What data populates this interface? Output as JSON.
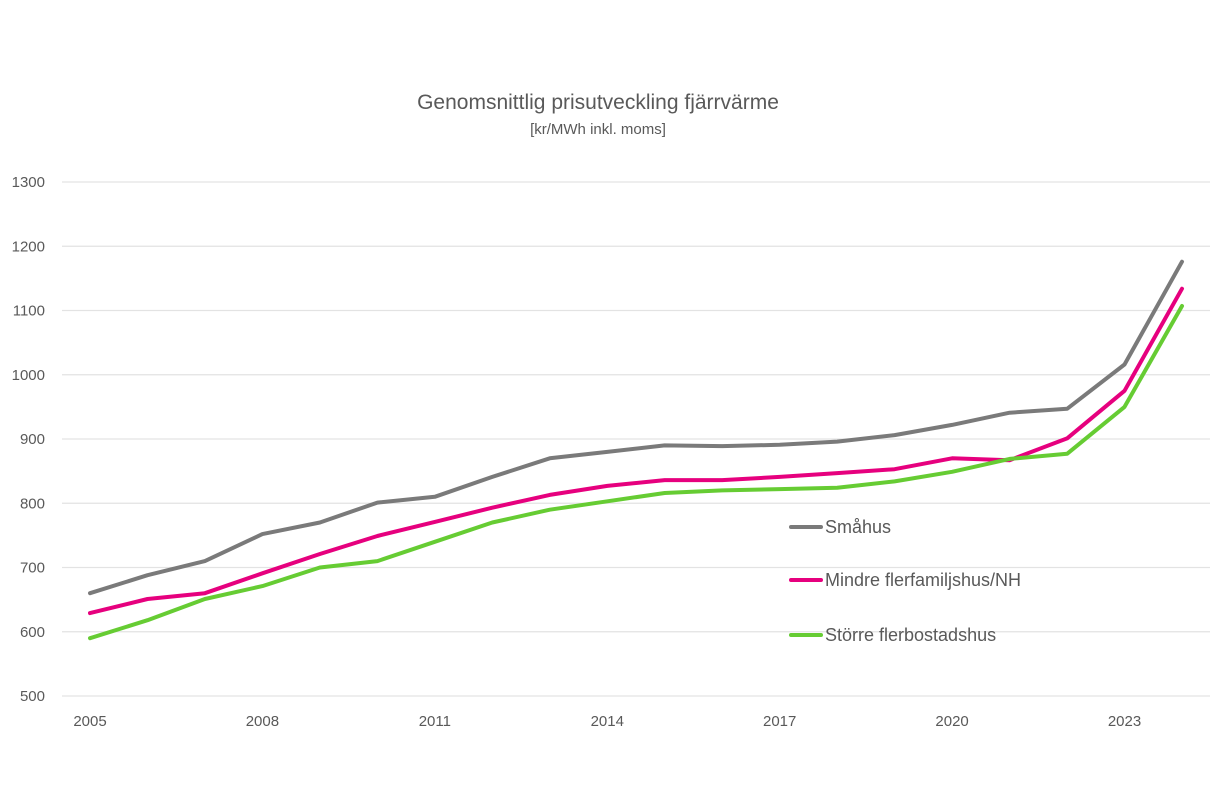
{
  "chart_data": {
    "type": "line",
    "title": "Genomsnittlig prisutveckling fjärrvärme",
    "subtitle": "[kr/MWh inkl. moms]",
    "xlabel": "",
    "ylabel": "",
    "x": [
      2005,
      2006,
      2007,
      2008,
      2009,
      2010,
      2011,
      2012,
      2013,
      2014,
      2015,
      2016,
      2017,
      2018,
      2019,
      2020,
      2021,
      2022,
      2023,
      2024
    ],
    "xlim": [
      2005,
      2024
    ],
    "x_tick_labels": [
      "2005",
      "2008",
      "2011",
      "2014",
      "2017",
      "2020",
      "2023"
    ],
    "ylim": [
      500,
      1300
    ],
    "y_tick_labels": [
      "500",
      "600",
      "700",
      "800",
      "900",
      "1000",
      "1100",
      "1200",
      "1300"
    ],
    "grid": true,
    "legend_position": "center-right inside plot",
    "series": [
      {
        "name": "Småhus",
        "color": "#7a7a7a",
        "values": [
          660,
          688,
          710,
          752,
          770,
          801,
          810,
          841,
          870,
          880,
          890,
          889,
          891,
          896,
          906,
          922,
          941,
          947,
          1016,
          1176
        ]
      },
      {
        "name": "Mindre flerfamiljshus/NH",
        "color": "#e6007e",
        "values": [
          629,
          651,
          660,
          691,
          721,
          749,
          771,
          793,
          813,
          827,
          836,
          836,
          841,
          847,
          853,
          870,
          867,
          901,
          975,
          1134
        ]
      },
      {
        "name": "Större flerbostadshus",
        "color": "#66cc33",
        "values": [
          590,
          618,
          651,
          671,
          700,
          710,
          740,
          770,
          790,
          803,
          816,
          820,
          822,
          824,
          834,
          849,
          869,
          877,
          950,
          1107
        ]
      }
    ]
  }
}
